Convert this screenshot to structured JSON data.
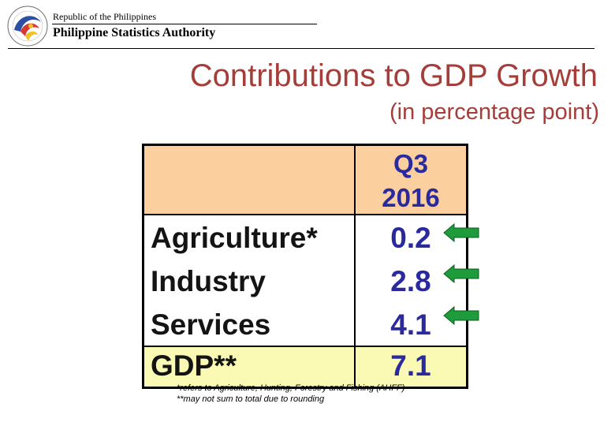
{
  "header": {
    "republic": "Republic of the Philippines",
    "agency": "Philippine Statistics Authority"
  },
  "title": "Contributions to GDP Growth",
  "subtitle": "(in percentage point)",
  "table": {
    "period_quarter": "Q3",
    "period_year": "2016",
    "rows": [
      {
        "label": "Agriculture*",
        "value": "0.2"
      },
      {
        "label": "Industry",
        "value": "2.8"
      },
      {
        "label": "Services",
        "value": "4.1"
      }
    ],
    "total": {
      "label": "GDP**",
      "value": "7.1"
    }
  },
  "notes": [
    "*refers to Agriculture, Hunting, Forestry and Fishing (AHFF)",
    "**may not sum to total due to rounding"
  ],
  "colors": {
    "title": "#a33e3a",
    "value_text": "#2a2a9e",
    "header_fill": "#fccf9e",
    "total_fill": "#fafab4",
    "arrow_fill": "#1e9b3a"
  },
  "icons": {
    "row_marker": "left-arrow-icon",
    "logo": "psa-seal-icon"
  }
}
